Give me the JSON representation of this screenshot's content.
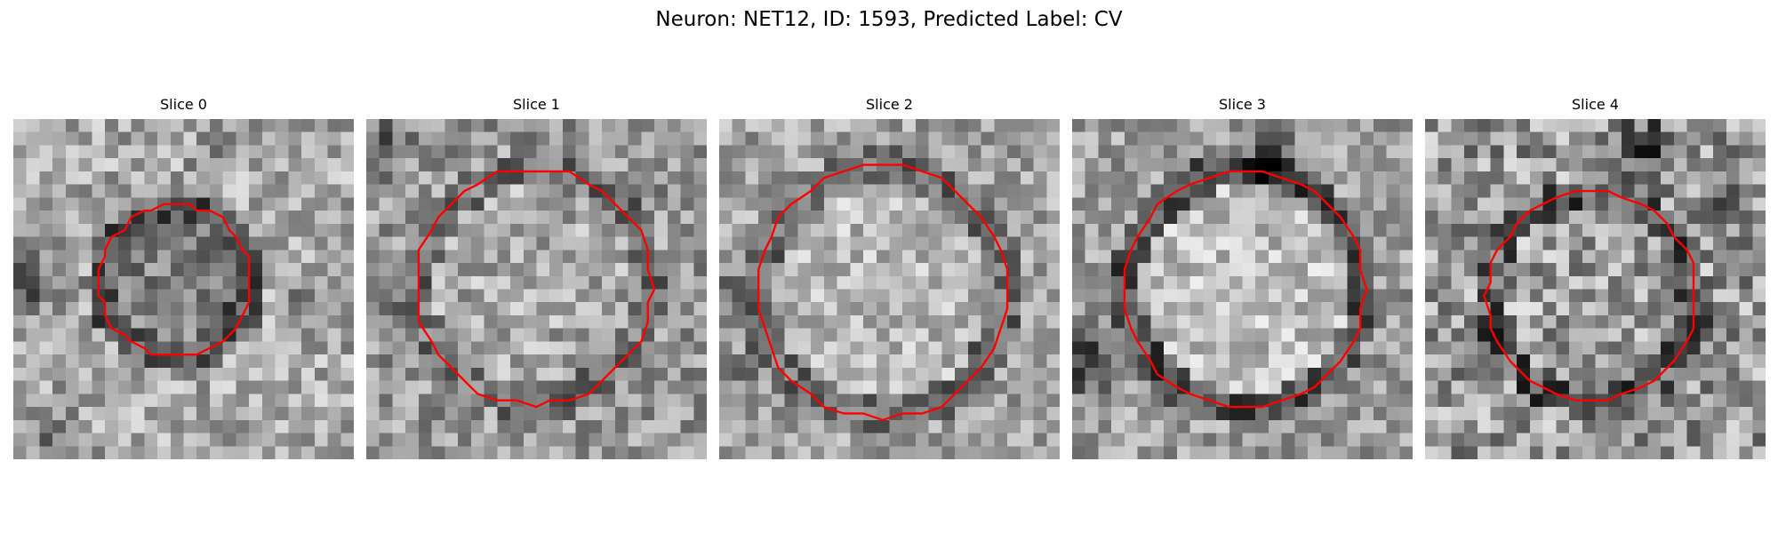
{
  "title": "Neuron: NET12, ID: 1593, Predicted Label: CV",
  "panels": [
    {
      "title": "Slice 0",
      "image": "grayscale-slice-with-red-contour"
    },
    {
      "title": "Slice 1",
      "image": "grayscale-slice-with-red-contour"
    },
    {
      "title": "Slice 2",
      "image": "grayscale-slice-with-red-contour"
    },
    {
      "title": "Slice 3",
      "image": "grayscale-slice-with-red-contour"
    },
    {
      "title": "Slice 4",
      "image": "grayscale-slice-with-red-contour"
    }
  ],
  "colors": {
    "contour": "#ff0000",
    "background": "#ffffff"
  }
}
